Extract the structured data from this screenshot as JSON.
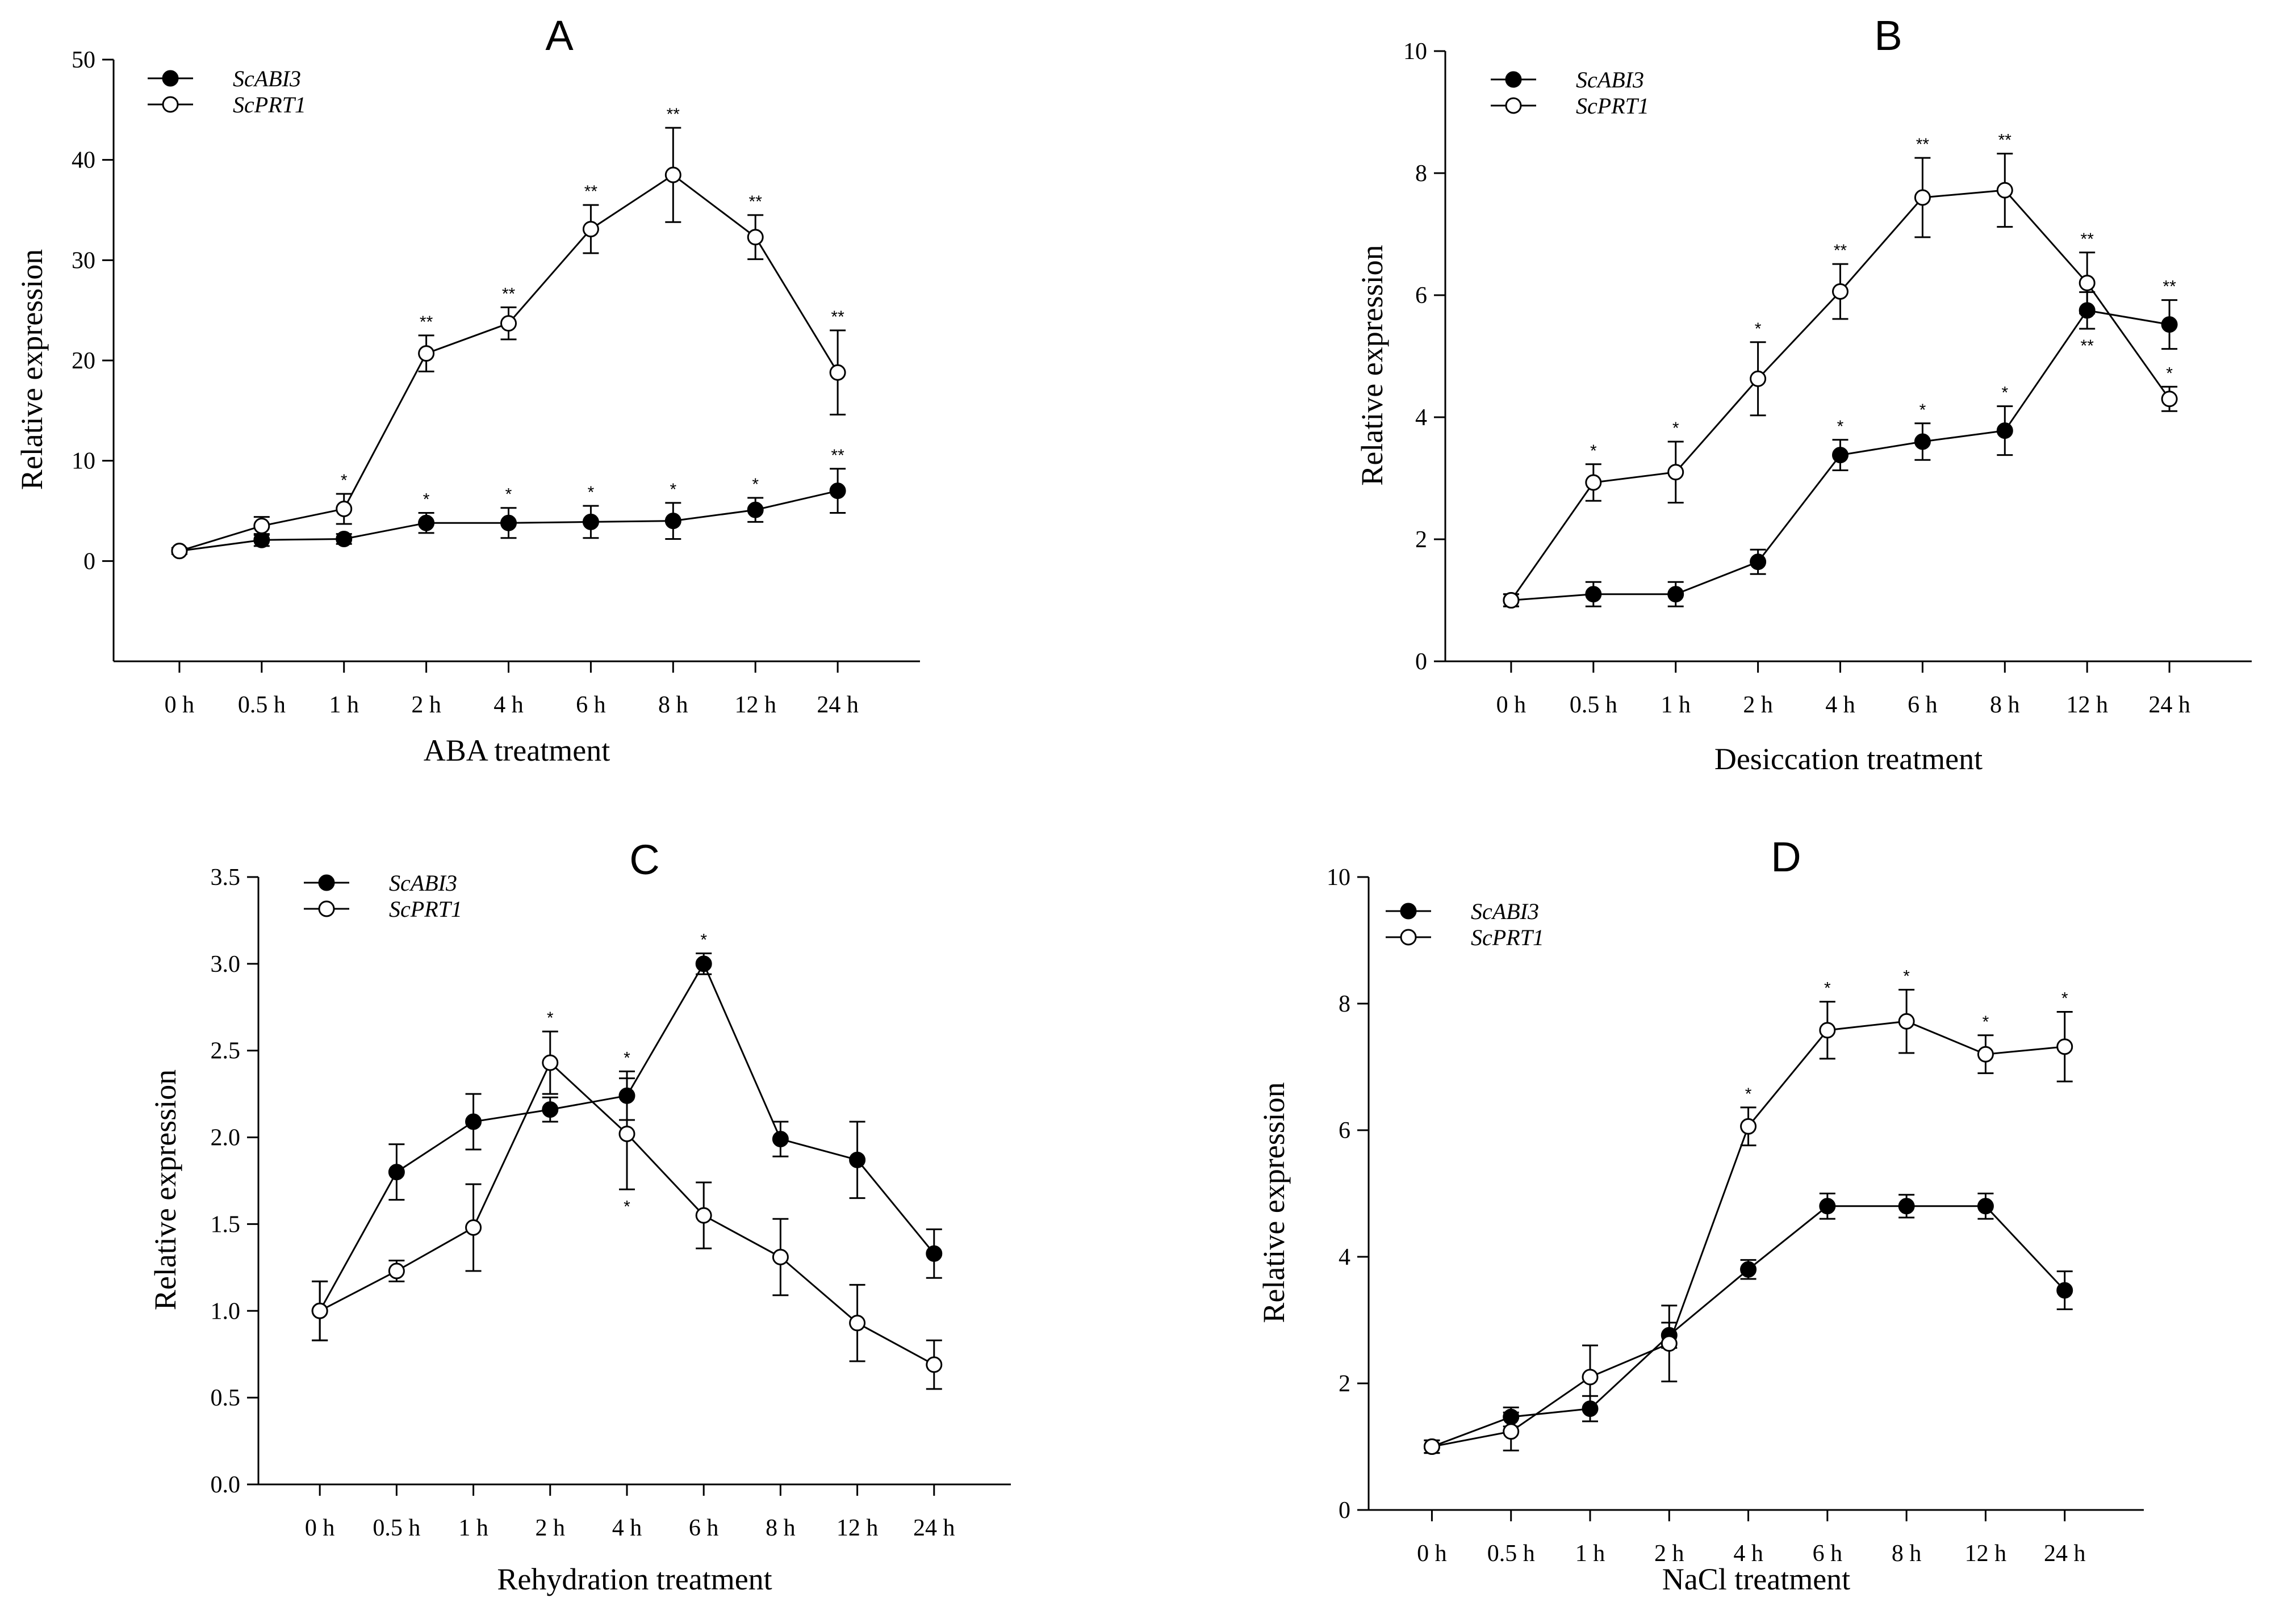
{
  "chart_data": [
    {
      "type": "line",
      "title": "A",
      "xlabel": "ABA treatment",
      "ylabel": "Relative expression",
      "categories": [
        "0 h",
        "0.5 h",
        "1 h",
        "2 h",
        "4 h",
        "6 h",
        "8 h",
        "12 h",
        "24 h"
      ],
      "ylim": [
        -10,
        50
      ],
      "yticks": [
        0,
        10,
        20,
        30,
        40,
        50
      ],
      "ytick_labels": [
        "0",
        "10",
        "20",
        "30",
        "40",
        "50"
      ],
      "grid": false,
      "legend_position": "top-left",
      "series": [
        {
          "name": "ScABI3",
          "marker": "filled",
          "values": [
            1.0,
            2.1,
            2.2,
            3.8,
            3.8,
            3.9,
            4.0,
            5.1,
            7.0
          ],
          "errors": [
            0.3,
            0.6,
            0.5,
            1.0,
            1.5,
            1.6,
            1.8,
            1.2,
            2.2
          ],
          "sig": [
            "",
            "",
            "",
            "*",
            "*",
            "*",
            "*",
            "*",
            "**"
          ]
        },
        {
          "name": "ScPRT1",
          "marker": "open",
          "values": [
            1.0,
            3.5,
            5.2,
            20.7,
            23.7,
            33.1,
            38.5,
            32.3,
            18.8
          ],
          "errors": [
            0.3,
            0.9,
            1.5,
            1.8,
            1.6,
            2.4,
            4.7,
            2.2,
            4.2
          ],
          "sig": [
            "",
            "",
            "*",
            "**",
            "**",
            "**",
            "**",
            "**",
            "**"
          ]
        }
      ]
    },
    {
      "type": "line",
      "title": "B",
      "xlabel": "Desiccation treatment",
      "ylabel": "Relative expression",
      "categories": [
        "0 h",
        "0.5 h",
        "1 h",
        "2 h",
        "4 h",
        "6 h",
        "8 h",
        "12 h",
        "24 h"
      ],
      "ylim": [
        0,
        10
      ],
      "yticks": [
        0,
        2,
        4,
        6,
        8,
        10
      ],
      "ytick_labels": [
        "0",
        "2",
        "4",
        "6",
        "8",
        "10"
      ],
      "grid": false,
      "legend_position": "top-left",
      "series": [
        {
          "name": "ScABI3",
          "marker": "filled",
          "values": [
            1.0,
            1.1,
            1.1,
            1.63,
            3.38,
            3.6,
            3.78,
            5.75,
            5.52
          ],
          "errors": [
            0.1,
            0.2,
            0.2,
            0.2,
            0.25,
            0.3,
            0.4,
            0.3,
            0.4
          ],
          "sig": [
            "",
            "",
            "",
            "",
            "*",
            "*",
            "*",
            "**",
            "**"
          ]
        },
        {
          "name": "ScPRT1",
          "marker": "open",
          "values": [
            1.0,
            2.93,
            3.1,
            4.63,
            6.06,
            7.6,
            7.72,
            6.2,
            4.3
          ],
          "errors": [
            0.1,
            0.3,
            0.5,
            0.6,
            0.45,
            0.65,
            0.6,
            0.5,
            0.2
          ],
          "sig": [
            "",
            "*",
            "*",
            "*",
            "**",
            "**",
            "**",
            "**",
            "*"
          ]
        }
      ]
    },
    {
      "type": "line",
      "title": "C",
      "xlabel": "Rehydration treatment",
      "ylabel": "Relative expression",
      "categories": [
        "0 h",
        "0.5 h",
        "1 h",
        "2 h",
        "4 h",
        "6 h",
        "8 h",
        "12 h",
        "24 h"
      ],
      "ylim": [
        0,
        3.5
      ],
      "yticks": [
        0,
        0.5,
        1.0,
        1.5,
        2.0,
        2.5,
        3.0,
        3.5
      ],
      "ytick_labels": [
        "0.0",
        "0.5",
        "1.0",
        "1.5",
        "2.0",
        "2.5",
        "3.0",
        "3.5"
      ],
      "grid": false,
      "legend_position": "top-left",
      "series": [
        {
          "name": "ScABI3",
          "marker": "filled",
          "values": [
            1.0,
            1.8,
            2.09,
            2.16,
            2.24,
            3.0,
            1.99,
            1.87,
            1.33
          ],
          "errors": [
            0.17,
            0.16,
            0.16,
            0.07,
            0.14,
            0.06,
            0.1,
            0.22,
            0.14
          ],
          "sig": [
            "",
            "",
            "",
            "",
            "*",
            "*",
            "",
            "",
            ""
          ]
        },
        {
          "name": "ScPRT1",
          "marker": "open",
          "values": [
            1.0,
            1.23,
            1.48,
            2.43,
            2.02,
            1.55,
            1.31,
            0.93,
            0.69
          ],
          "errors": [
            0.17,
            0.06,
            0.25,
            0.18,
            0.32,
            0.19,
            0.22,
            0.22,
            0.14
          ],
          "sig": [
            "",
            "",
            "",
            "*",
            "*",
            "",
            "",
            "",
            ""
          ]
        }
      ]
    },
    {
      "type": "line",
      "title": "D",
      "xlabel": "NaCl treatment",
      "ylabel": "Relative expression",
      "categories": [
        "0 h",
        "0.5 h",
        "1 h",
        "2 h",
        "4 h",
        "6 h",
        "8 h",
        "12 h",
        "24 h"
      ],
      "ylim": [
        0,
        10
      ],
      "yticks": [
        0,
        2,
        4,
        6,
        8,
        10
      ],
      "ytick_labels": [
        "0",
        "2",
        "4",
        "6",
        "8",
        "10"
      ],
      "grid": false,
      "legend_position": "top-left",
      "series": [
        {
          "name": "ScABI3",
          "marker": "filled",
          "values": [
            1.0,
            1.47,
            1.6,
            2.76,
            3.8,
            4.8,
            4.8,
            4.8,
            3.47
          ],
          "errors": [
            0.1,
            0.15,
            0.2,
            0.2,
            0.15,
            0.2,
            0.18,
            0.2,
            0.3
          ],
          "sig": [
            "",
            "",
            "",
            "",
            "",
            "",
            "",
            "",
            ""
          ]
        },
        {
          "name": "ScPRT1",
          "marker": "open",
          "values": [
            1.0,
            1.24,
            2.1,
            2.63,
            6.06,
            7.58,
            7.72,
            7.2,
            7.32
          ],
          "errors": [
            0.1,
            0.3,
            0.5,
            0.6,
            0.3,
            0.45,
            0.5,
            0.3,
            0.55
          ],
          "sig": [
            "",
            "",
            "",
            "",
            "*",
            "*",
            "*",
            "*",
            "*"
          ]
        }
      ]
    }
  ]
}
